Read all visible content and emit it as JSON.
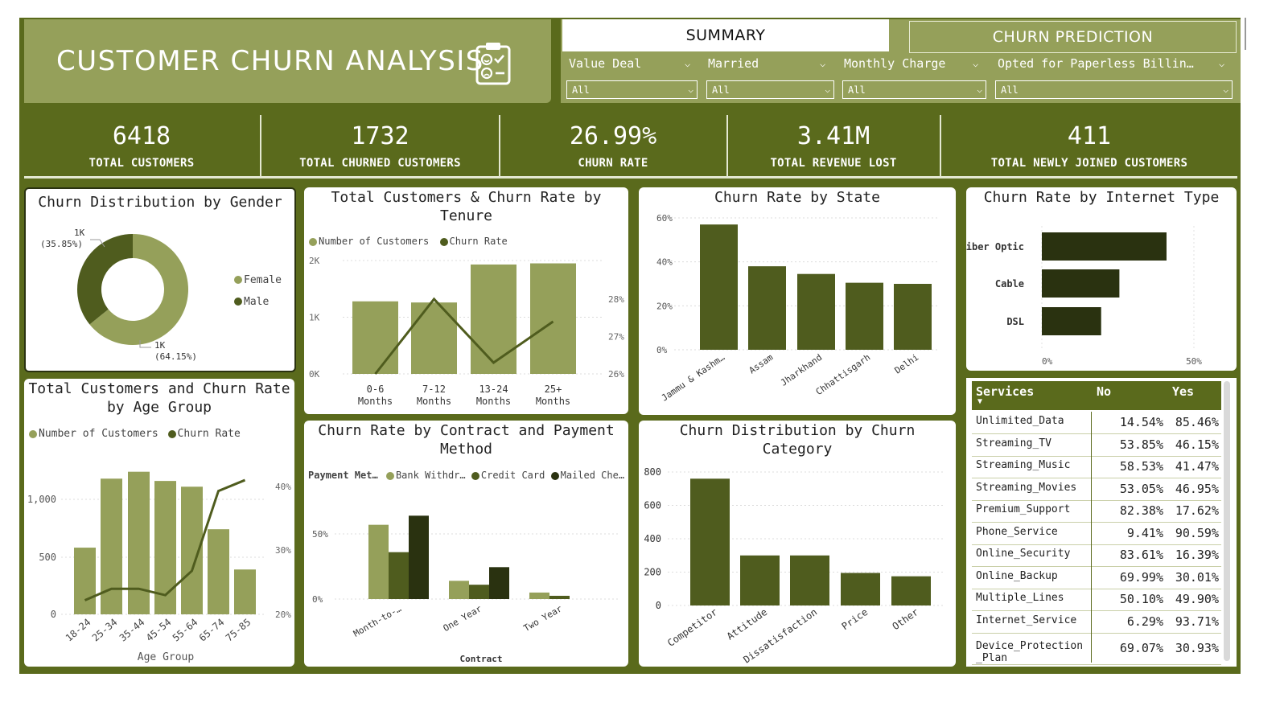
{
  "title": "CUSTOMER CHURN ANALYSIS",
  "nav": {
    "summary": "SUMMARY",
    "prediction": "CHURN PREDICTION"
  },
  "filters": [
    {
      "label": "Value Deal",
      "value": "All"
    },
    {
      "label": "Married",
      "value": "All"
    },
    {
      "label": "Monthly Charge",
      "value": "All"
    },
    {
      "label": "Opted for Paperless Billin…",
      "value": "All"
    }
  ],
  "kpis": [
    {
      "value": "6418",
      "label": "TOTAL CUSTOMERS"
    },
    {
      "value": "1732",
      "label": "TOTAL CHURNED CUSTOMERS"
    },
    {
      "value": "26.99%",
      "label": "CHURN RATE"
    },
    {
      "value": "3.41M",
      "label": "TOTAL REVENUE LOST"
    },
    {
      "value": "411",
      "label": "TOTAL NEWLY JOINED CUSTOMERS"
    }
  ],
  "colors": {
    "dark": "#4f5c1e",
    "light": "#95a05a",
    "darkest": "#2a3210",
    "frame": "#5a6a1c"
  },
  "chart_data": [
    {
      "type": "pie",
      "title": "Churn Distribution by Gender",
      "categories": [
        "Female",
        "Male"
      ],
      "values": [
        64.15,
        35.85
      ],
      "data_labels": [
        "1K\n(64.15%)",
        "1K\n(35.85%)"
      ],
      "legend": [
        "Female",
        "Male"
      ]
    },
    {
      "type": "bar",
      "title": "Total Customers & Churn Rate by Tenure",
      "legend": [
        "Number of Customers",
        "Churn Rate"
      ],
      "categories": [
        "0-6 Months",
        "7-12 Months",
        "13-24 Months",
        "25+ Months"
      ],
      "series": [
        {
          "name": "Number of Customers",
          "values": [
            1280,
            1260,
            1930,
            1950
          ]
        },
        {
          "name": "Churn Rate",
          "values": [
            26.0,
            28.0,
            26.3,
            27.4
          ]
        }
      ],
      "yticks": [
        "0K",
        "1K",
        "2K"
      ],
      "y2ticks": [
        "26%",
        "27%",
        "28%"
      ],
      "ylim": [
        0,
        2000
      ],
      "y2lim": [
        26,
        28
      ]
    },
    {
      "type": "bar",
      "title": "Churn Rate by State",
      "categories": [
        "Jammu & Kashm…",
        "Assam",
        "Jharkhand",
        "Chhattisgarh",
        "Delhi"
      ],
      "values": [
        57,
        38,
        34.5,
        30.5,
        30
      ],
      "yticks": [
        "0%",
        "20%",
        "40%",
        "60%"
      ],
      "ylim": [
        0,
        60
      ]
    },
    {
      "type": "bar",
      "title": "Churn Rate by Internet Type",
      "categories": [
        "Fiber Optic",
        "Cable",
        "DSL"
      ],
      "values": [
        41,
        25.5,
        19.5
      ],
      "xticks": [
        "0%",
        "50%"
      ],
      "xlim": [
        0,
        50
      ]
    },
    {
      "type": "bar",
      "title": "Total Customers and Churn Rate by Age Group",
      "legend": [
        "Number of Customers",
        "Churn Rate"
      ],
      "xlabel": "Age Group",
      "categories": [
        "18-24",
        "25-34",
        "35-44",
        "45-54",
        "55-64",
        "65-74",
        "75-85"
      ],
      "series": [
        {
          "name": "Number of Customers",
          "values": [
            580,
            1180,
            1240,
            1160,
            1110,
            740,
            390
          ]
        },
        {
          "name": "Churn Rate",
          "values": [
            22.2,
            24.0,
            24.0,
            23.0,
            26.8,
            39.3,
            41.0
          ]
        }
      ],
      "yticks": [
        "0",
        "500",
        "1,000"
      ],
      "y2ticks": [
        "20%",
        "30%",
        "40%"
      ],
      "ylim": [
        0,
        1400
      ],
      "y2lim": [
        20,
        40
      ]
    },
    {
      "type": "bar",
      "title": "Churn Rate by Contract and Payment Method",
      "legend_title": "Payment Met…",
      "legend": [
        "Bank Withdr…",
        "Credit Card",
        "Mailed Che…"
      ],
      "xlabel": "Contract",
      "categories": [
        "Month-to-…",
        "One Year",
        "Two Year"
      ],
      "series": [
        {
          "name": "Bank Withdr…",
          "values": [
            57,
            14,
            5
          ]
        },
        {
          "name": "Credit Card",
          "values": [
            36,
            11,
            2.5
          ]
        },
        {
          "name": "Mailed Che…",
          "values": [
            64,
            24.5,
            0
          ]
        }
      ],
      "yticks": [
        "0%",
        "50%"
      ],
      "ylim": [
        0,
        70
      ]
    },
    {
      "type": "bar",
      "title": "Churn Distribution by Churn Category",
      "categories": [
        "Competitor",
        "Attitude",
        "Dissatisfaction",
        "Price",
        "Other"
      ],
      "values": [
        760,
        300,
        300,
        195,
        175
      ],
      "yticks": [
        "0",
        "200",
        "400",
        "600",
        "800"
      ],
      "ylim": [
        0,
        800
      ]
    }
  ],
  "services": {
    "headers": [
      "Services",
      "No",
      "Yes"
    ],
    "rows": [
      {
        "name": "Unlimited_Data",
        "no": "14.54%",
        "yes": "85.46%"
      },
      {
        "name": "Streaming_TV",
        "no": "53.85%",
        "yes": "46.15%"
      },
      {
        "name": "Streaming_Music",
        "no": "58.53%",
        "yes": "41.47%"
      },
      {
        "name": "Streaming_Movies",
        "no": "53.05%",
        "yes": "46.95%"
      },
      {
        "name": "Premium_Support",
        "no": "82.38%",
        "yes": "17.62%"
      },
      {
        "name": "Phone_Service",
        "no": "9.41%",
        "yes": "90.59%"
      },
      {
        "name": "Online_Security",
        "no": "83.61%",
        "yes": "16.39%"
      },
      {
        "name": "Online_Backup",
        "no": "69.99%",
        "yes": "30.01%"
      },
      {
        "name": "Multiple_Lines",
        "no": "50.10%",
        "yes": "49.90%"
      },
      {
        "name": "Internet_Service",
        "no": "6.29%",
        "yes": "93.71%"
      },
      {
        "name": "Device_Protection _Plan",
        "no": "69.07%",
        "yes": "30.93%"
      }
    ]
  }
}
